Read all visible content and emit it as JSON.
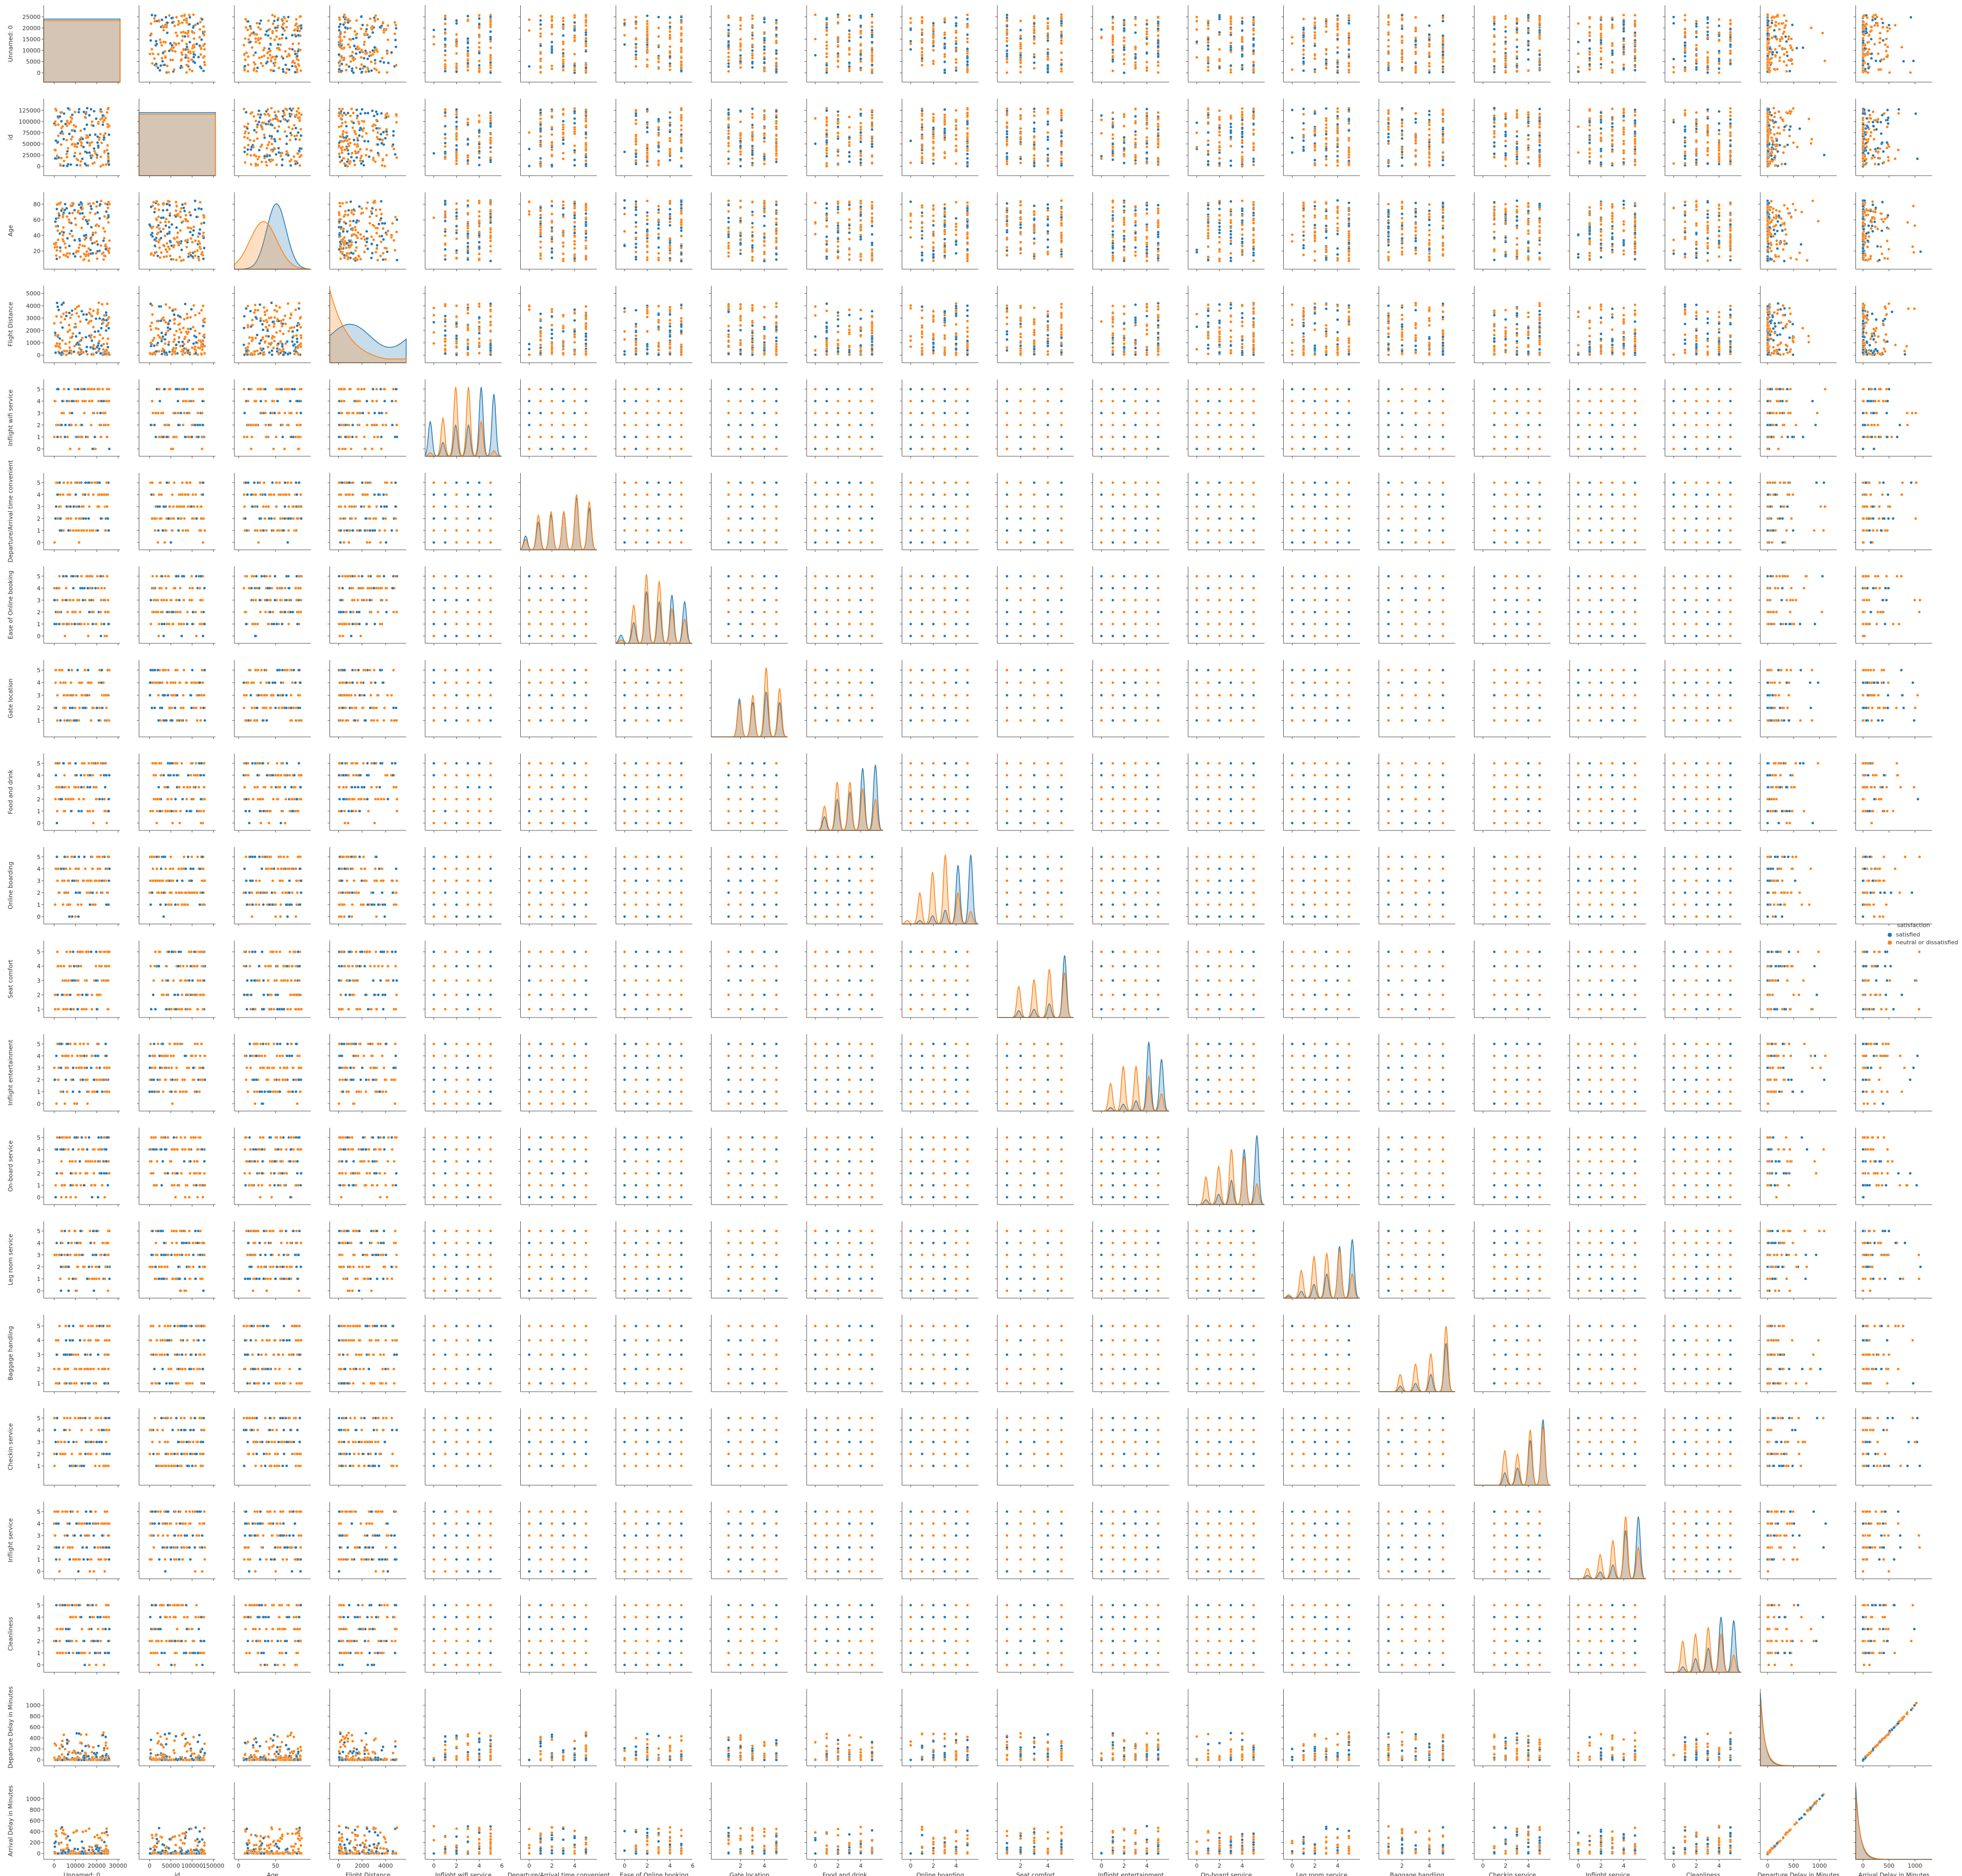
{
  "chart_data": {
    "type": "pairplot",
    "title": "",
    "hue": "satisfaction",
    "variables": [
      "Unnamed: 0",
      "id",
      "Age",
      "Flight Distance",
      "Inflight wifi service",
      "Departure/Arrival time convenient",
      "Ease of Online booking",
      "Gate location",
      "Food and drink",
      "Online boarding",
      "Seat comfort",
      "Inflight entertainment",
      "On-board service",
      "Leg room service",
      "Baggage handling",
      "Checkin service",
      "Inflight service",
      "Cleanliness",
      "Departure Delay in Minutes",
      "Arrival Delay in Minutes"
    ],
    "legend": {
      "title": "satisfaction",
      "placement": "right",
      "entries": [
        {
          "label": "satisfied",
          "color": "#1f77b4"
        },
        {
          "label": "neutral or dissatisfied",
          "color": "#ff7f0e"
        }
      ]
    },
    "colors": {
      "satisfied": "#1f77b4",
      "neutral_or_dissatisfied": "#ff7f0e",
      "axis": "#555555"
    },
    "axes": [
      {
        "name": "Unnamed: 0",
        "range": [
          -3000,
          29000
        ],
        "ticks": [
          0,
          10000,
          20000,
          30000
        ],
        "x_tick_labels": [
          "0",
          "10000",
          "20000",
          "30000"
        ],
        "y_ticks": [
          0,
          5000,
          10000,
          15000,
          20000,
          25000
        ],
        "y_tick_labels": [
          "0",
          "5000",
          "10000",
          "15000",
          "20000",
          "25000"
        ],
        "kind": "uniform",
        "min": 0,
        "max": 26000
      },
      {
        "name": "id",
        "range": [
          -15000,
          145000
        ],
        "ticks": [
          0,
          50000,
          100000,
          150000
        ],
        "x_tick_labels": [
          "0",
          "50000",
          "100000",
          "150000"
        ],
        "y_ticks": [
          0,
          25000,
          50000,
          75000,
          100000,
          125000
        ],
        "y_tick_labels": [
          "0",
          "25000",
          "50000",
          "75000",
          "100000",
          "125000"
        ],
        "kind": "uniform",
        "min": 0,
        "max": 130000
      },
      {
        "name": "Age",
        "range": [
          0,
          92
        ],
        "ticks": [
          0,
          50
        ],
        "x_tick_labels": [
          "0",
          "50"
        ],
        "y_ticks": [
          20,
          40,
          60,
          80
        ],
        "y_tick_labels": [
          "20",
          "40",
          "60",
          "80"
        ],
        "kind": "uniform",
        "min": 7,
        "max": 85
      },
      {
        "name": "Flight Distance",
        "range": [
          -400,
          5400
        ],
        "ticks": [
          0,
          2000,
          4000
        ],
        "x_tick_labels": [
          "0",
          "2000",
          "4000"
        ],
        "y_ticks": [
          0,
          1000,
          2000,
          3000,
          4000,
          5000
        ],
        "y_tick_labels": [
          "0",
          "1000",
          "2000",
          "3000",
          "4000",
          "5000"
        ],
        "kind": "skewed",
        "min": 31,
        "max": 4983
      },
      {
        "name": "Inflight wifi service",
        "range": [
          -0.4,
          5.6
        ],
        "ticks": [
          0,
          2,
          4,
          6
        ],
        "x_tick_labels": [
          "0",
          "2",
          "4",
          "6"
        ],
        "y_ticks": [
          0,
          1,
          2,
          3,
          4,
          5
        ],
        "y_tick_labels": [
          "0",
          "1",
          "2",
          "3",
          "4",
          "5"
        ],
        "kind": "discrete",
        "values": [
          0,
          1,
          2,
          3,
          4,
          5
        ]
      },
      {
        "name": "Departure/Arrival time convenient",
        "range": [
          -0.4,
          5.6
        ],
        "ticks": [
          0,
          2,
          4
        ],
        "x_tick_labels": [
          "0",
          "2",
          "4"
        ],
        "y_ticks": [
          0,
          1,
          2,
          3,
          4,
          5
        ],
        "y_tick_labels": [
          "0",
          "1",
          "2",
          "3",
          "4",
          "5"
        ],
        "kind": "discrete",
        "values": [
          0,
          1,
          2,
          3,
          4,
          5
        ]
      },
      {
        "name": "Ease of Online booking",
        "range": [
          -0.4,
          5.6
        ],
        "ticks": [
          0,
          2,
          4,
          6
        ],
        "x_tick_labels": [
          "0",
          "2",
          "4",
          "6"
        ],
        "y_ticks": [
          0,
          1,
          2,
          3,
          4,
          5
        ],
        "y_tick_labels": [
          "0",
          "1",
          "2",
          "3",
          "4",
          "5"
        ],
        "kind": "discrete",
        "values": [
          0,
          1,
          2,
          3,
          4,
          5
        ]
      },
      {
        "name": "Gate location",
        "range": [
          -0.1,
          5.6
        ],
        "ticks": [
          2,
          4
        ],
        "x_tick_labels": [
          "2",
          "4"
        ],
        "y_ticks": [
          1,
          2,
          3,
          4,
          5
        ],
        "y_tick_labels": [
          "1",
          "2",
          "3",
          "4",
          "5"
        ],
        "kind": "discrete",
        "values": [
          1,
          2,
          3,
          4,
          5
        ]
      },
      {
        "name": "Food and drink",
        "range": [
          -0.4,
          5.6
        ],
        "ticks": [
          0,
          2,
          4
        ],
        "x_tick_labels": [
          "0",
          "2",
          "4"
        ],
        "y_ticks": [
          0,
          1,
          2,
          3,
          4,
          5
        ],
        "y_tick_labels": [
          "0",
          "1",
          "2",
          "3",
          "4",
          "5"
        ],
        "kind": "discrete",
        "values": [
          0,
          1,
          2,
          3,
          4,
          5
        ]
      },
      {
        "name": "Online boarding",
        "range": [
          -0.4,
          5.6
        ],
        "ticks": [
          0,
          2,
          4
        ],
        "x_tick_labels": [
          "0",
          "2",
          "4"
        ],
        "y_ticks": [
          0,
          1,
          2,
          3,
          4,
          5
        ],
        "y_tick_labels": [
          "0",
          "1",
          "2",
          "3",
          "4",
          "5"
        ],
        "kind": "discrete",
        "values": [
          0,
          1,
          2,
          3,
          4,
          5
        ]
      },
      {
        "name": "Seat comfort",
        "range": [
          0.6,
          5.6
        ],
        "ticks": [
          2,
          4
        ],
        "x_tick_labels": [
          "2",
          "4"
        ],
        "y_ticks": [
          1,
          2,
          3,
          4,
          5
        ],
        "y_tick_labels": [
          "1",
          "2",
          "3",
          "4",
          "5"
        ],
        "kind": "discrete",
        "values": [
          1,
          2,
          3,
          4,
          5
        ]
      },
      {
        "name": "Inflight entertainment",
        "range": [
          -0.4,
          5.6
        ],
        "ticks": [
          0,
          2,
          4
        ],
        "x_tick_labels": [
          "0",
          "2",
          "4"
        ],
        "y_ticks": [
          0,
          1,
          2,
          3,
          4,
          5
        ],
        "y_tick_labels": [
          "0",
          "1",
          "2",
          "3",
          "4",
          "5"
        ],
        "kind": "discrete",
        "values": [
          0,
          1,
          2,
          3,
          4,
          5
        ]
      },
      {
        "name": "On-board service",
        "range": [
          -0.4,
          5.6
        ],
        "ticks": [
          0,
          2,
          4
        ],
        "x_tick_labels": [
          "0",
          "2",
          "4"
        ],
        "y_ticks": [
          0,
          1,
          2,
          3,
          4,
          5
        ],
        "y_tick_labels": [
          "0",
          "1",
          "2",
          "3",
          "4",
          "5"
        ],
        "kind": "discrete",
        "values": [
          0,
          1,
          2,
          3,
          4,
          5
        ]
      },
      {
        "name": "Leg room service",
        "range": [
          -0.4,
          5.6
        ],
        "ticks": [
          0,
          2,
          4
        ],
        "x_tick_labels": [
          "0",
          "2",
          "4"
        ],
        "y_ticks": [
          0,
          1,
          2,
          3,
          4,
          5
        ],
        "y_tick_labels": [
          "0",
          "1",
          "2",
          "3",
          "4",
          "5"
        ],
        "kind": "discrete",
        "values": [
          0,
          1,
          2,
          3,
          4,
          5
        ]
      },
      {
        "name": "Baggage handling",
        "range": [
          0.6,
          5.6
        ],
        "ticks": [
          2,
          4
        ],
        "x_tick_labels": [
          "2",
          "4"
        ],
        "y_ticks": [
          1,
          2,
          3,
          4,
          5
        ],
        "y_tick_labels": [
          "1",
          "2",
          "3",
          "4",
          "5"
        ],
        "kind": "discrete",
        "values": [
          1,
          2,
          3,
          4,
          5
        ]
      },
      {
        "name": "Checkin service",
        "range": [
          -0.4,
          5.6
        ],
        "ticks": [
          0,
          2,
          4
        ],
        "x_tick_labels": [
          "0",
          "2",
          "4"
        ],
        "y_ticks": [
          1,
          2,
          3,
          4,
          5
        ],
        "y_tick_labels": [
          "1",
          "2",
          "3",
          "4",
          "5"
        ],
        "kind": "discrete",
        "values": [
          1,
          2,
          3,
          4,
          5
        ]
      },
      {
        "name": "Inflight service",
        "range": [
          -0.4,
          5.6
        ],
        "ticks": [
          0,
          2,
          4
        ],
        "x_tick_labels": [
          "0",
          "2",
          "4"
        ],
        "y_ticks": [
          0,
          1,
          2,
          3,
          4,
          5
        ],
        "y_tick_labels": [
          "0",
          "1",
          "2",
          "3",
          "4",
          "5"
        ],
        "kind": "discrete",
        "values": [
          0,
          1,
          2,
          3,
          4,
          5
        ]
      },
      {
        "name": "Cleanliness",
        "range": [
          -0.4,
          5.6
        ],
        "ticks": [
          0,
          2,
          4
        ],
        "x_tick_labels": [
          "0",
          "2",
          "4"
        ],
        "y_ticks": [
          0,
          1,
          2,
          3,
          4,
          5
        ],
        "y_tick_labels": [
          "0",
          "1",
          "2",
          "3",
          "4",
          "5"
        ],
        "kind": "discrete",
        "values": [
          0,
          1,
          2,
          3,
          4,
          5
        ]
      },
      {
        "name": "Departure Delay in Minutes",
        "range": [
          -60,
          1250
        ],
        "ticks": [
          0,
          500,
          1000
        ],
        "x_tick_labels": [
          "0",
          "500",
          "1000"
        ],
        "y_ticks": [
          0,
          200,
          400,
          600,
          800,
          1000
        ],
        "y_tick_labels": [
          "0",
          "200",
          "400",
          "600",
          "800",
          "1000"
        ],
        "kind": "delay",
        "min": 0,
        "max": 1128
      },
      {
        "name": "Arrival Delay in Minutes",
        "range": [
          -60,
          1250
        ],
        "ticks": [
          0,
          500,
          1000
        ],
        "x_tick_labels": [
          "0",
          "500",
          "1000"
        ],
        "y_ticks": [
          0,
          200,
          400,
          600,
          800,
          1000
        ],
        "y_tick_labels": [
          "0",
          "200",
          "400",
          "600",
          "800",
          "1000"
        ],
        "kind": "delay",
        "min": 0,
        "max": 1115
      }
    ],
    "kde_peaks": {
      "Inflight wifi service": {
        "satisfied": [
          0.5,
          0.2,
          0.45,
          0.45,
          1.0,
          0.9
        ],
        "neutral or dissatisfied": [
          0.05,
          0.55,
          1.0,
          1.0,
          0.5,
          0.08
        ]
      },
      "Departure/Arrival time convenient": {
        "satisfied": [
          0.2,
          0.4,
          0.5,
          0.55,
          0.75,
          0.6
        ],
        "neutral or dissatisfied": [
          0.15,
          0.5,
          0.55,
          0.55,
          0.8,
          0.7
        ]
      },
      "Ease of Online booking": {
        "satisfied": [
          0.12,
          0.3,
          0.75,
          0.6,
          0.7,
          0.6
        ],
        "neutral or dissatisfied": [
          0.05,
          0.55,
          1.0,
          0.9,
          0.5,
          0.35
        ]
      },
      "Gate location": {
        "satisfied": [
          0,
          0.55,
          0.5,
          0.65,
          0.5,
          0.35
        ],
        "neutral or dissatisfied": [
          0,
          0.5,
          0.6,
          1.0,
          0.7,
          0.3
        ]
      },
      "Food and drink": {
        "satisfied": [
          0.0,
          0.2,
          0.45,
          0.55,
          0.9,
          0.95
        ],
        "neutral or dissatisfied": [
          0.0,
          0.35,
          0.7,
          0.7,
          0.6,
          0.45
        ]
      },
      "Online boarding": {
        "satisfied": [
          0.0,
          0.05,
          0.12,
          0.2,
          0.85,
          1.0
        ],
        "neutral or dissatisfied": [
          0.05,
          0.45,
          0.75,
          1.0,
          0.45,
          0.18
        ]
      },
      "Seat comfort": {
        "satisfied": [
          0,
          0.1,
          0.12,
          0.2,
          0.9,
          1.0
        ],
        "neutral or dissatisfied": [
          0,
          0.45,
          0.55,
          0.7,
          0.65,
          0.35
        ]
      },
      "Inflight entertainment": {
        "satisfied": [
          0.0,
          0.05,
          0.1,
          0.15,
          1.0,
          0.75
        ],
        "neutral or dissatisfied": [
          0.0,
          0.4,
          0.65,
          0.65,
          0.5,
          0.25
        ]
      },
      "On-board service": {
        "satisfied": [
          0.0,
          0.07,
          0.15,
          0.35,
          0.8,
          1.0
        ],
        "neutral or dissatisfied": [
          0.0,
          0.4,
          0.55,
          0.8,
          0.7,
          0.3
        ]
      },
      "Leg room service": {
        "satisfied": [
          0.03,
          0.1,
          0.2,
          0.35,
          0.75,
          0.85
        ],
        "neutral or dissatisfied": [
          0.05,
          0.4,
          0.6,
          0.65,
          0.7,
          0.35
        ]
      },
      "Baggage handling": {
        "satisfied": [
          0,
          0.08,
          0.12,
          0.25,
          0.7,
          0.85
        ],
        "neutral or dissatisfied": [
          0,
          0.25,
          0.4,
          0.55,
          0.95,
          0.5
        ]
      },
      "Checkin service": {
        "satisfied": [
          0,
          0.18,
          0.25,
          0.65,
          0.95,
          0.9
        ],
        "neutral or dissatisfied": [
          0,
          0.5,
          0.45,
          0.8,
          0.85,
          0.45
        ]
      },
      "Inflight service": {
        "satisfied": [
          0.0,
          0.05,
          0.1,
          0.2,
          0.7,
          0.9
        ],
        "neutral or dissatisfied": [
          0.0,
          0.15,
          0.35,
          0.55,
          0.9,
          0.45
        ]
      },
      "Cleanliness": {
        "satisfied": [
          0.0,
          0.08,
          0.2,
          0.35,
          0.8,
          0.75
        ],
        "neutral or dissatisfied": [
          0.0,
          0.45,
          0.55,
          0.65,
          0.55,
          0.25
        ]
      }
    }
  }
}
